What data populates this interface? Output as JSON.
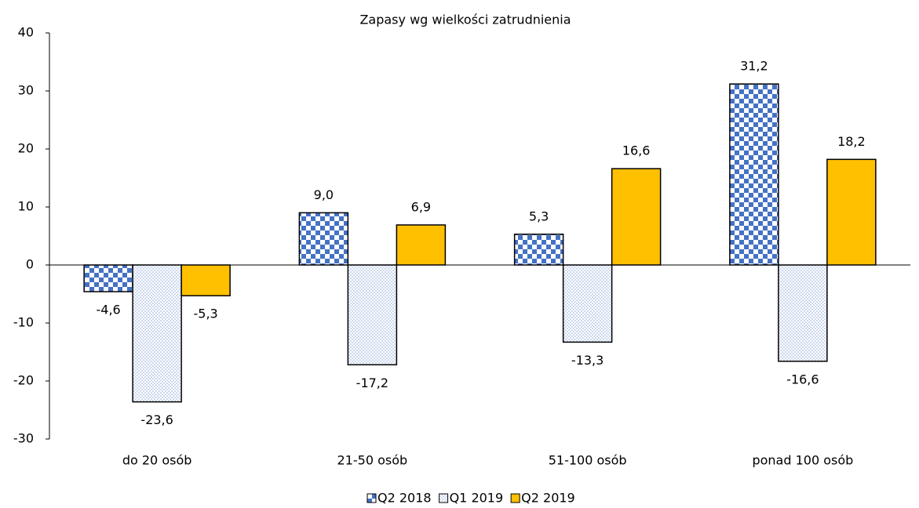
{
  "chart_data": {
    "type": "bar",
    "title": "Zapasy wg wielkości zatrudnienia",
    "categories": [
      "do 20 osób",
      "21-50 osób",
      "51-100 osób",
      "ponad 100 osób"
    ],
    "series": [
      {
        "name": "Q2 2018",
        "color": "#4472c4",
        "pattern": "checker",
        "values": [
          -4.6,
          9.0,
          5.3,
          31.2
        ],
        "value_labels": [
          "-4,6",
          "9,0",
          "5,3",
          "31,2"
        ]
      },
      {
        "name": "Q1 2019",
        "color": "#8faadc",
        "pattern": "dots",
        "values": [
          -23.6,
          -17.2,
          -13.3,
          -16.6
        ],
        "value_labels": [
          "-23,6",
          "-17,2",
          "-13,3",
          "-16,6"
        ]
      },
      {
        "name": "Q2 2019",
        "color": "#ffc000",
        "pattern": "solid",
        "values": [
          -5.3,
          6.9,
          16.6,
          18.2
        ],
        "value_labels": [
          "-5,3",
          "6,9",
          "16,6",
          "18,2"
        ]
      }
    ],
    "ylim": [
      -30,
      40
    ],
    "yticks": [
      -30,
      -20,
      -10,
      0,
      10,
      20,
      30,
      40
    ],
    "grid": false,
    "legend": "bottom"
  }
}
